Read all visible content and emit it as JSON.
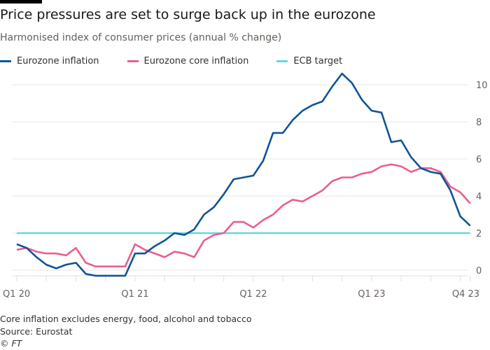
{
  "title": "Price pressures are set to surge back up in the eurozone",
  "subtitle": "Harmonised index of consumer prices (annual % change)",
  "footnote": "Core inflation excludes energy, food, alcohol and tobacco",
  "source": "Source: Eurostat",
  "credit": "© FT",
  "chart_data": {
    "type": "line",
    "x": [
      "2020-01",
      "2020-02",
      "2020-03",
      "2020-04",
      "2020-05",
      "2020-06",
      "2020-07",
      "2020-08",
      "2020-09",
      "2020-10",
      "2020-11",
      "2020-12",
      "2021-01",
      "2021-02",
      "2021-03",
      "2021-04",
      "2021-05",
      "2021-06",
      "2021-07",
      "2021-08",
      "2021-09",
      "2021-10",
      "2021-11",
      "2021-12",
      "2022-01",
      "2022-02",
      "2022-03",
      "2022-04",
      "2022-05",
      "2022-06",
      "2022-07",
      "2022-08",
      "2022-09",
      "2022-10",
      "2022-11",
      "2022-12",
      "2023-01",
      "2023-02",
      "2023-03",
      "2023-04",
      "2023-05",
      "2023-06",
      "2023-07",
      "2023-08",
      "2023-09",
      "2023-10",
      "2023-11"
    ],
    "series": [
      {
        "name": "Eurozone inflation",
        "color": "#0f5499",
        "values": [
          1.4,
          1.2,
          0.7,
          0.3,
          0.1,
          0.3,
          0.4,
          -0.2,
          -0.3,
          -0.3,
          -0.3,
          -0.3,
          0.9,
          0.9,
          1.3,
          1.6,
          2.0,
          1.9,
          2.2,
          3.0,
          3.4,
          4.1,
          4.9,
          5.0,
          5.1,
          5.9,
          7.4,
          7.4,
          8.1,
          8.6,
          8.9,
          9.1,
          9.9,
          10.6,
          10.1,
          9.2,
          8.6,
          8.5,
          6.9,
          7.0,
          6.1,
          5.5,
          5.3,
          5.2,
          4.3,
          2.9,
          2.4
        ]
      },
      {
        "name": "Eurozone core inflation",
        "color": "#eb5e8d",
        "values": [
          1.1,
          1.2,
          1.0,
          0.9,
          0.9,
          0.8,
          1.2,
          0.4,
          0.2,
          0.2,
          0.2,
          0.2,
          1.4,
          1.1,
          0.9,
          0.7,
          1.0,
          0.9,
          0.7,
          1.6,
          1.9,
          2.0,
          2.6,
          2.6,
          2.3,
          2.7,
          3.0,
          3.5,
          3.8,
          3.7,
          4.0,
          4.3,
          4.8,
          5.0,
          5.0,
          5.2,
          5.3,
          5.6,
          5.7,
          5.6,
          5.3,
          5.5,
          5.5,
          5.3,
          4.5,
          4.2,
          3.6
        ]
      },
      {
        "name": "ECB target",
        "color": "#67d5e0",
        "values": [
          2,
          2,
          2,
          2,
          2,
          2,
          2,
          2,
          2,
          2,
          2,
          2,
          2,
          2,
          2,
          2,
          2,
          2,
          2,
          2,
          2,
          2,
          2,
          2,
          2,
          2,
          2,
          2,
          2,
          2,
          2,
          2,
          2,
          2,
          2,
          2,
          2,
          2,
          2,
          2,
          2,
          2,
          2,
          2,
          2,
          2,
          2
        ]
      }
    ],
    "x_tick_labels": [
      {
        "label": "Q1 20",
        "at": "2020-01"
      },
      {
        "label": "Q1 21",
        "at": "2021-01"
      },
      {
        "label": "Q1 22",
        "at": "2022-01"
      },
      {
        "label": "Q1 23",
        "at": "2023-01"
      },
      {
        "label": "Q4 23",
        "at": "2023-10"
      }
    ],
    "y_ticks": [
      0,
      2,
      4,
      6,
      8,
      10
    ],
    "ylim": [
      0,
      10.5
    ],
    "y_axis_side": "right",
    "grid": true,
    "legend_position": "top"
  }
}
